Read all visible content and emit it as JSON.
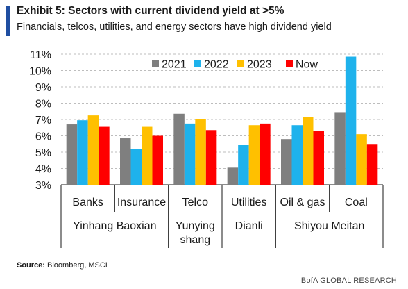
{
  "header": {
    "title": "Exhibit 5: Sectors with current dividend yield at >5%",
    "subtitle": "Financials, telcos, utilities, and energy sectors have high dividend yield"
  },
  "source": {
    "label": "Source:",
    "text": " Bloomberg, MSCI"
  },
  "footer": {
    "brand": "BofA GLOBAL RESEARCH"
  },
  "chart_data": {
    "type": "bar",
    "categories": [
      "Banks",
      "Insurance",
      "Telco",
      "Utilities",
      "Oil & gas",
      "Coal"
    ],
    "groups": [
      {
        "lines": [
          "Yinhang Baoxian"
        ]
      },
      {
        "lines": [
          "Yunying",
          "shang"
        ]
      },
      {
        "lines": [
          "Dianli"
        ]
      },
      {
        "lines": [
          "Shiyou Meitan"
        ]
      }
    ],
    "series": [
      {
        "name": "2021",
        "color": "#7f7f7f",
        "values": [
          6.7,
          5.85,
          7.35,
          4.05,
          5.8,
          7.45
        ]
      },
      {
        "name": "2022",
        "color": "#1eb2ec",
        "values": [
          6.95,
          5.2,
          6.75,
          5.45,
          6.65,
          10.85
        ]
      },
      {
        "name": "2023",
        "color": "#ffc000",
        "values": [
          7.25,
          6.55,
          7.0,
          6.65,
          7.15,
          6.1
        ]
      },
      {
        "name": "Now",
        "color": "#ff0000",
        "values": [
          6.55,
          6.0,
          6.35,
          6.75,
          6.3,
          5.5
        ]
      }
    ],
    "ylim": [
      3,
      11
    ],
    "yticks": [
      "3%",
      "4%",
      "5%",
      "6%",
      "7%",
      "8%",
      "9%",
      "10%",
      "11%"
    ],
    "grid": true,
    "legend": "top-right"
  }
}
